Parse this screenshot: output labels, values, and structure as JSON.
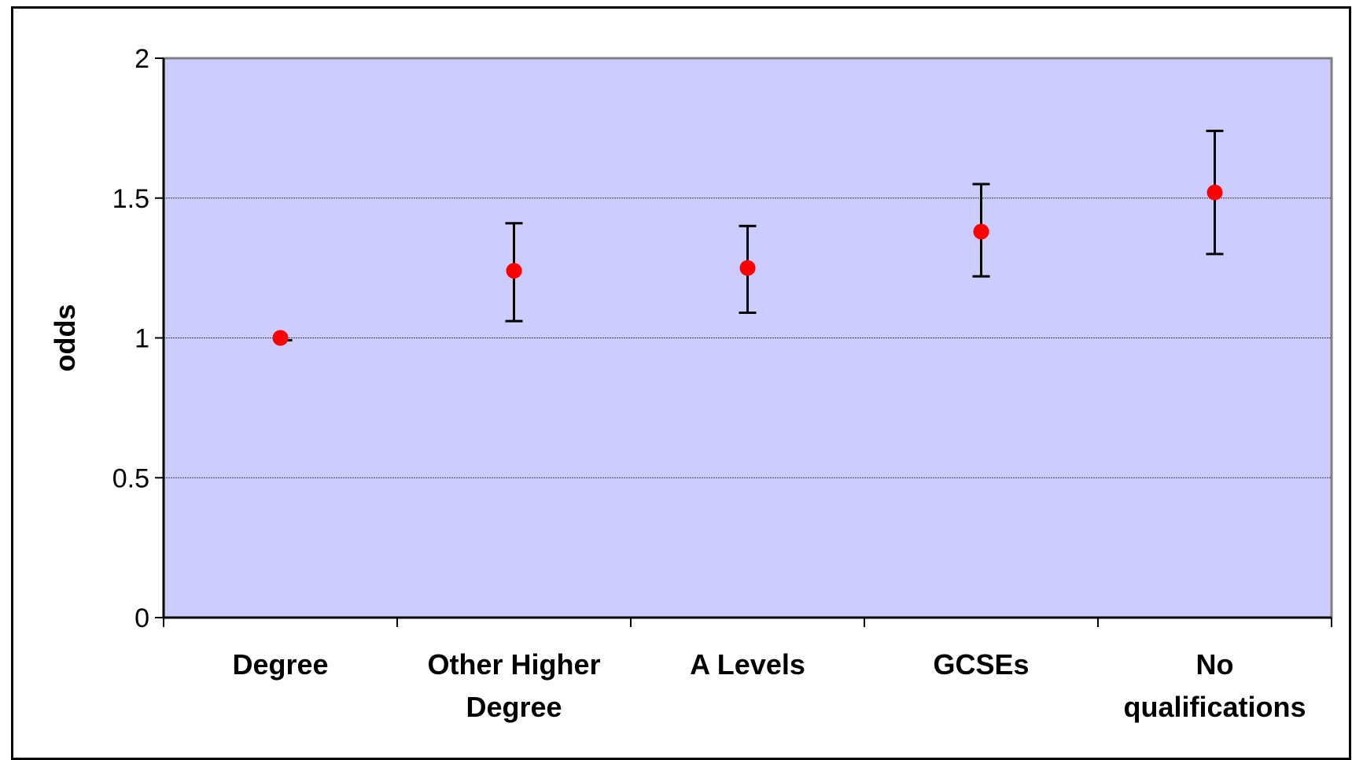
{
  "chart_data": {
    "type": "scatter",
    "title": "",
    "xlabel": "",
    "ylabel": "odds",
    "ylim": [
      0,
      2
    ],
    "yticks": [
      "0",
      "0.5",
      "1",
      "1.5",
      "2"
    ],
    "categories": [
      [
        "Degree"
      ],
      [
        "Other Higher",
        "Degree"
      ],
      [
        "A Levels"
      ],
      [
        "GCSEs"
      ],
      [
        "No",
        "qualifications"
      ]
    ],
    "values": [
      1.0,
      1.24,
      1.25,
      1.38,
      1.52
    ],
    "error_low": [
      1.0,
      1.06,
      1.09,
      1.22,
      1.3
    ],
    "error_high": [
      1.0,
      1.41,
      1.4,
      1.55,
      1.74
    ],
    "grid": true,
    "colors": {
      "plot_background": "#CCCCFF",
      "marker": "#FF0000",
      "error_bar": "#000000",
      "gridline": "#000000"
    }
  }
}
